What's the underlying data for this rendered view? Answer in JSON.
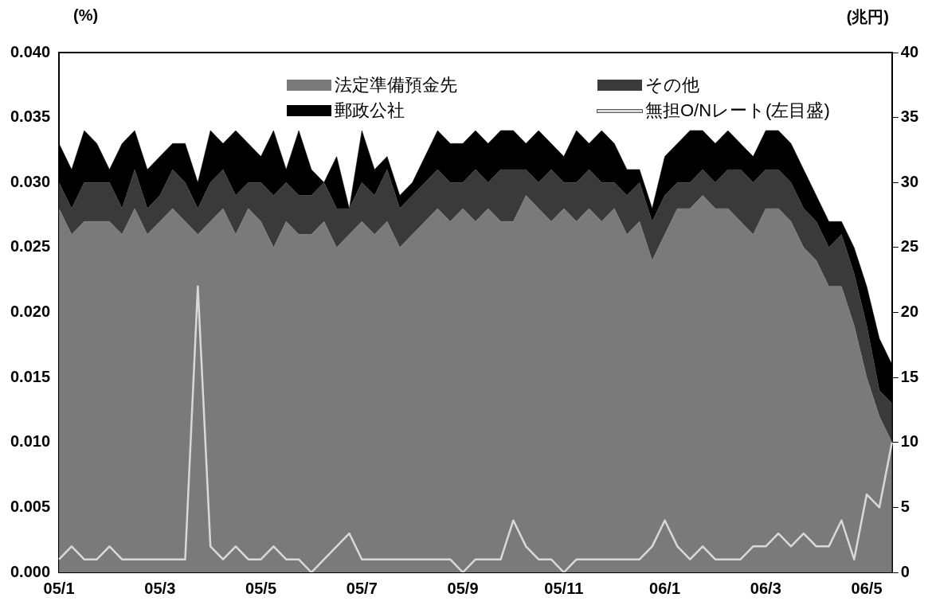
{
  "chart_data": {
    "type": "area",
    "stacked": true,
    "ylabel": "(%)",
    "y2label": "(兆円)",
    "legend": "top",
    "grid": false,
    "categories": [
      "05/1",
      null,
      null,
      null,
      null,
      null,
      null,
      null,
      "05/3",
      null,
      null,
      null,
      null,
      null,
      null,
      null,
      "05/5",
      null,
      null,
      null,
      null,
      null,
      null,
      null,
      "05/7",
      null,
      null,
      null,
      null,
      null,
      null,
      null,
      "05/9",
      null,
      null,
      null,
      null,
      null,
      null,
      null,
      "05/11",
      null,
      null,
      null,
      null,
      null,
      null,
      null,
      "06/1",
      null,
      null,
      null,
      null,
      null,
      null,
      null,
      "06/3",
      null,
      null,
      null,
      null,
      null,
      null,
      null,
      "06/5",
      null,
      null
    ],
    "ylim": [
      0,
      0.04
    ],
    "yticks": [
      {
        "value": 0,
        "label": "0.000"
      },
      {
        "value": 0.005,
        "label": "0.005"
      },
      {
        "value": 0.01,
        "label": "0.010"
      },
      {
        "value": 0.015,
        "label": "0.015"
      },
      {
        "value": 0.02,
        "label": "0.020"
      },
      {
        "value": 0.025,
        "label": "0.025"
      },
      {
        "value": 0.03,
        "label": "0.030"
      },
      {
        "value": 0.035,
        "label": "0.035"
      },
      {
        "value": 0.04,
        "label": "0.040"
      }
    ],
    "y2lim": [
      0,
      40
    ],
    "y2ticks": [
      0,
      5,
      10,
      15,
      20,
      25,
      30,
      35,
      40
    ],
    "series": [
      {
        "name": "法定準備預金先",
        "type": "area",
        "axis": "y2",
        "color": "#7a7a7a",
        "values": [
          28,
          26,
          27,
          27,
          27,
          26,
          28,
          26,
          27,
          28,
          27,
          26,
          27,
          28,
          26,
          28,
          27,
          25,
          27,
          26,
          26,
          27,
          25,
          26,
          27,
          26,
          27,
          25,
          26,
          27,
          28,
          27,
          28,
          27,
          28,
          27,
          27,
          29,
          28,
          27,
          28,
          27,
          28,
          27,
          28,
          26,
          27,
          24,
          26,
          28,
          28,
          29,
          28,
          28,
          27,
          26,
          28,
          28,
          27,
          25,
          24,
          22,
          22,
          19,
          15,
          12,
          10
        ]
      },
      {
        "name": "その他",
        "type": "area",
        "axis": "y2",
        "color": "#3a3a3a",
        "values": [
          2,
          2,
          3,
          3,
          3,
          2,
          3,
          2,
          2,
          3,
          3,
          2,
          3,
          3,
          3,
          2,
          3,
          4,
          3,
          3,
          3,
          3,
          3,
          2,
          3,
          3,
          4,
          3,
          3,
          3,
          3,
          3,
          2,
          4,
          2,
          4,
          4,
          2,
          2,
          4,
          2,
          3,
          3,
          3,
          2,
          3,
          3,
          3,
          3,
          2,
          2,
          2,
          2,
          3,
          4,
          4,
          3,
          3,
          3,
          3,
          3,
          3,
          4,
          4,
          4,
          2,
          3
        ]
      },
      {
        "name": "郵政公社",
        "type": "area",
        "axis": "y2",
        "color": "#000000",
        "values": [
          3,
          3,
          4,
          3,
          1,
          5,
          3,
          3,
          3,
          2,
          3,
          2,
          4,
          2,
          5,
          3,
          2,
          5,
          1,
          5,
          2,
          0,
          4,
          0,
          4,
          2,
          1,
          1,
          1,
          2,
          3,
          3,
          3,
          3,
          3,
          3,
          3,
          2,
          4,
          2,
          2,
          4,
          2,
          4,
          3,
          2,
          1,
          1,
          3,
          3,
          4,
          3,
          3,
          3,
          2,
          2,
          3,
          3,
          3,
          3,
          2,
          2,
          1,
          2,
          3,
          4,
          3
        ]
      },
      {
        "name": "無担O/Nレート(左目盛)",
        "type": "line",
        "color": "#d9d9d9",
        "values": [
          0.001,
          0.002,
          0.001,
          0.001,
          0.002,
          0.001,
          0.001,
          0.001,
          0.001,
          0.001,
          0.001,
          0.022,
          0.002,
          0.001,
          0.002,
          0.001,
          0.001,
          0.002,
          0.001,
          0.001,
          0,
          0.001,
          0.002,
          0.003,
          0.001,
          0.001,
          0.001,
          0.001,
          0.001,
          0.001,
          0.001,
          0.001,
          0,
          0.001,
          0.001,
          0.001,
          0.004,
          0.002,
          0.001,
          0.001,
          0,
          0.001,
          0.001,
          0.001,
          0.001,
          0.001,
          0.001,
          0.002,
          0.004,
          0.002,
          0.001,
          0.002,
          0.001,
          0.001,
          0.001,
          0.002,
          0.002,
          0.003,
          0.002,
          0.003,
          0.002,
          0.002,
          0.004,
          0.001,
          0.006,
          0.005,
          0.01
        ]
      }
    ]
  }
}
